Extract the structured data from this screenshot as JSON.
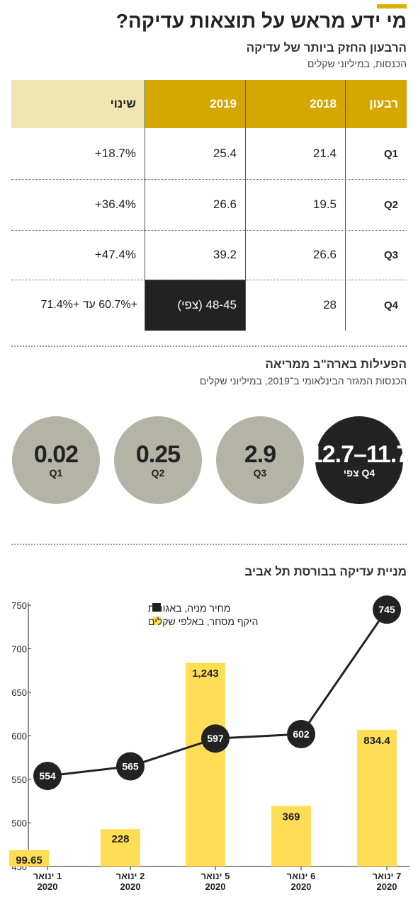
{
  "title": "מי ידע מראש על תוצאות עדיקה?",
  "section1": {
    "title": "הרבעון החזק ביותר של עדיקה",
    "subtitle": "הכנסות, במיליוני שקלים",
    "table": {
      "headers": [
        "רבעון",
        "2018",
        "2019",
        "שינוי"
      ],
      "rows": [
        {
          "quarter": "Q1",
          "y2018": "21.4",
          "y2019": "25.4",
          "change": "+18.7%"
        },
        {
          "quarter": "Q2",
          "y2018": "19.5",
          "y2019": "26.6",
          "change": "+36.4%"
        },
        {
          "quarter": "Q3",
          "y2018": "26.6",
          "y2019": "39.2",
          "change": "+47.4%"
        },
        {
          "quarter": "Q4",
          "y2018": "28",
          "y2019": "48-45 (צפי)",
          "change": "+60.7% עד +71.4%"
        }
      ]
    }
  },
  "section2": {
    "title": "הפעילות בארה\"ב ממריאה",
    "subtitle": "הכנסות המגזר הבינלאומי ב־2019, במיליוני שקלים",
    "bubbles": [
      {
        "value": "12.7–11.7",
        "label": "Q4 צפי",
        "bg": "#222222",
        "fg": "#ffffff"
      },
      {
        "value": "2.9",
        "label": "Q3",
        "bg": "#b3b3a6",
        "fg": "#222222"
      },
      {
        "value": "0.25",
        "label": "Q2",
        "bg": "#b3b3a6",
        "fg": "#222222"
      },
      {
        "value": "0.02",
        "label": "Q1",
        "bg": "#b3b3a6",
        "fg": "#222222"
      }
    ]
  },
  "chart_data": {
    "type": "bar",
    "title": "מניית עדיקה בבורסת תל אביב",
    "categories": [
      "1 ינואר 2020",
      "2 ינואר 2020",
      "5 ינואר 2020",
      "6 ינואר 2020",
      "7 ינואר 2020"
    ],
    "category_lines": [
      [
        "1 ינואר",
        "2020"
      ],
      [
        "2 ינואר",
        "2020"
      ],
      [
        "5 ינואר",
        "2020"
      ],
      [
        "6 ינואר",
        "2020"
      ],
      [
        "7 ינואר",
        "2020"
      ]
    ],
    "ylim": [
      450,
      750
    ],
    "yticks": [
      450,
      500,
      550,
      600,
      650,
      700,
      750
    ],
    "grid": false,
    "legend_position": "top-right",
    "series": [
      {
        "name": "מחיר מניה, באגורות",
        "type": "line",
        "color": "#222222",
        "values": [
          554,
          565,
          597,
          602,
          745
        ],
        "labels": [
          "554",
          "565",
          "597",
          "602",
          "745"
        ]
      },
      {
        "name": "היקף מסחר, באלפי שקלים",
        "type": "bar",
        "color": "#ffdd55",
        "values": [
          99.65,
          228,
          1243,
          369,
          834.4
        ],
        "labels": [
          "99.65",
          "228",
          "1,243",
          "369",
          "834.4"
        ]
      }
    ]
  },
  "colors": {
    "gold": "#d4a800",
    "gold_light": "#f0e6b0",
    "dark": "#222222",
    "yellow": "#ffdd55",
    "grey": "#b3b3a6"
  }
}
